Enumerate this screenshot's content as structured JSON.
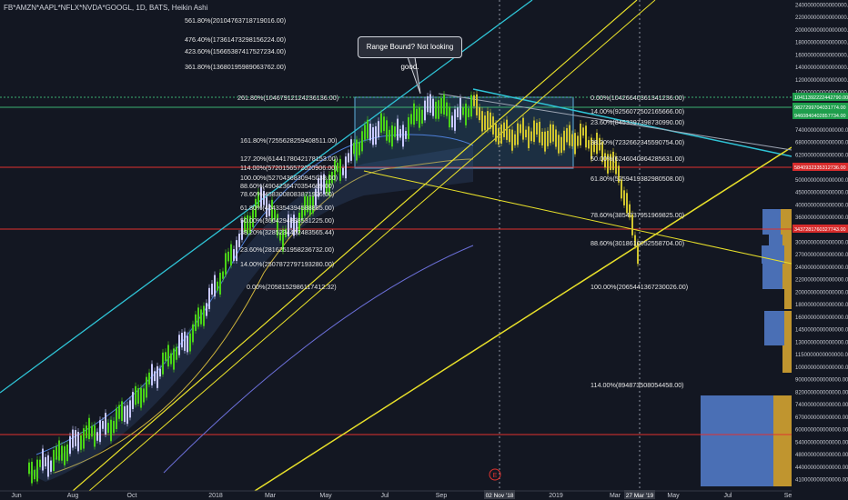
{
  "header": {
    "symbol": "FB*AMZN*AAPL*NFLX*NVDA*GOOGL, 1D, BATS, Heikin Ashi"
  },
  "callout": {
    "text": "Range Bound? Not looking good."
  },
  "colors": {
    "background": "#131722",
    "cyan_line": "#2fc4d6",
    "yellow_line": "#e8e02a",
    "red_line": "#e0322e",
    "green_line": "#3bb273",
    "candle_up": "#4ad317",
    "candle_down": "#c8c8ff",
    "axis_text": "#c9ccd4",
    "volume_blue": "#4a6fb5",
    "volume_gold": "#c0952f"
  },
  "chart_data": {
    "type": "candlestick",
    "x_axis": {
      "ticks": [
        "Jun",
        "Aug",
        "Oct",
        "2018",
        "Mar",
        "May",
        "Jul",
        "Sep",
        "2019",
        "Mar",
        "May",
        "Jul",
        "Se"
      ],
      "crosshair_labels": [
        "02 Nov '18",
        "27 Mar '19"
      ]
    },
    "y_axis": {
      "scale": "log",
      "ticks": [
        "24000000000000000.00",
        "22000000000000000.00",
        "20000000000000000.00",
        "18000000000000000.00",
        "16000000000000000.00",
        "14000000000000000.00",
        "12000000000000000.00",
        "10000000000000000.00",
        "9000000000000000.00",
        "8000000000000000.00",
        "7400000000000000.00",
        "6800000000000000.00",
        "6200000000000000.00",
        "5600000000000000.00",
        "5000000000000000.00",
        "4500000000000000.00",
        "4000000000000000.00",
        "3600000000000000.00",
        "3300000000000000.00",
        "3000000000000000.00",
        "2700000000000000.00",
        "2400000000000000.00",
        "2200000000000000.00",
        "2000000000000000.00",
        "1800000000000000.00",
        "1600000000000000.00",
        "1450000000000000.00",
        "1300000000000000.00",
        "1150000000000000.00",
        "1000000000000000.00",
        "900000000000000.00",
        "820000000000000.00",
        "740000000000000.00",
        "670000000000000.00",
        "600000000000000.00",
        "540000000000000.00",
        "480000000000000.00",
        "440000000000000.00",
        "410000000000000.00"
      ],
      "price_tags": [
        {
          "text": "10411392222442790.00",
          "kind": "green"
        },
        {
          "text": "9827299704031774.00",
          "kind": "green"
        },
        {
          "text": "9460840402857734.00",
          "kind": "green"
        },
        {
          "text": "5840932335312736.00",
          "kind": "red"
        },
        {
          "text": "3437281760327743.00",
          "kind": "red"
        }
      ]
    },
    "fib_levels_upper": [
      "561.80%(20104763718719016.00)",
      "476.40%(17361473298156224.00)",
      "423.60%(15665387417527234.00)",
      "361.80%(13680195989063762.00)",
      "261.80%(10467912124236136.00)",
      "161.80%(7255628259408511.00)",
      "127.20%(6144178042178153.00)",
      "114.00%(5720156572020906.00)",
      "100.00%(5270436830945038.00)",
      "88.60%(4904236470354689.00)",
      "78.60%(4583008083871926.00)",
      "61.80%(4043354394588885.00)",
      "50.00%(3664294898531225.00)",
      "38.20%(3285234402483565.44)",
      "23.60%(2816251958236732.00)",
      "14.00%(2507872797193280.00)",
      "0.00%(2058152986117412.32)"
    ],
    "fib_levels_right": [
      "0.00%(10426640361341236.00)",
      "14.00%(9256072502165666.00)",
      "23.60%(8453397398730990.00)",
      "38.20%(7232662345590754.00)",
      "50.00%(6246040864285631.00)",
      "61.80%(5259419382980508.00)",
      "78.60%(3854737951969825.00)",
      "88.60%(3018610052558704.00)",
      "100.00%(2065441367230026.00)",
      "114.00%(894873508054458.00)"
    ],
    "legend_marker": "E"
  }
}
